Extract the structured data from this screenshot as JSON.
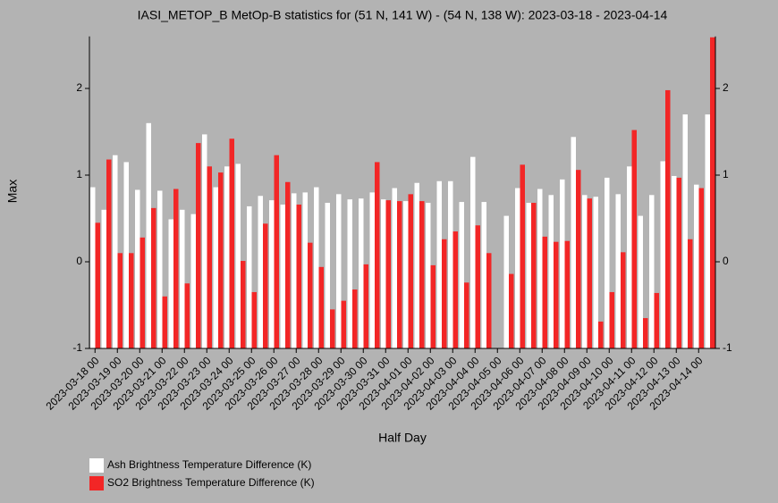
{
  "chart_data": {
    "type": "bar",
    "title": "IASI_METOP_B MetOp-B statistics for (51 N, 141 W) - (54 N, 138 W): 2023-03-18 - 2023-04-14",
    "xlabel": "Half Day",
    "ylabel": "Max",
    "categories": [
      "2023-03-18 00",
      null,
      "2023-03-19 00",
      null,
      "2023-03-20 00",
      null,
      "2023-03-21 00",
      null,
      "2023-03-22 00",
      null,
      "2023-03-23 00",
      null,
      "2023-03-24 00",
      null,
      "2023-03-25 00",
      null,
      "2023-03-26 00",
      null,
      "2023-03-27 00",
      null,
      "2023-03-28 00",
      null,
      "2023-03-29 00",
      null,
      "2023-03-30 00",
      null,
      "2023-03-31 00",
      null,
      "2023-04-01 00",
      null,
      "2023-04-02 00",
      null,
      "2023-04-03 00",
      null,
      "2023-04-04 00",
      null,
      "2023-04-05 00",
      null,
      "2023-04-06 00",
      null,
      "2023-04-07 00",
      null,
      "2023-04-08 00",
      null,
      "2023-04-09 00",
      null,
      "2023-04-10 00",
      null,
      "2023-04-11 00",
      null,
      "2023-04-12 00",
      null,
      "2023-04-13 00",
      null,
      "2023-04-14 00",
      null
    ],
    "series": [
      {
        "name": "Ash Brightness Temperature Difference (K)",
        "color": "#ffffff",
        "values": [
          0.86,
          0.6,
          1.23,
          1.15,
          0.83,
          1.6,
          0.82,
          0.49,
          0.6,
          0.55,
          1.47,
          0.86,
          1.1,
          1.13,
          0.64,
          0.76,
          0.71,
          0.66,
          0.79,
          0.8,
          0.86,
          0.68,
          0.78,
          0.72,
          0.73,
          0.8,
          0.72,
          0.85,
          0.7,
          0.91,
          0.68,
          0.93,
          0.93,
          0.69,
          1.21,
          0.69,
          null,
          0.53,
          0.85,
          0.68,
          0.84,
          0.77,
          0.95,
          1.44,
          0.77,
          0.75,
          0.97,
          0.78,
          1.1,
          0.53,
          0.77,
          1.16,
          0.99,
          1.7,
          0.89,
          1.7
        ]
      },
      {
        "name": "SO2 Brightness Temperature Difference (K)",
        "color": "#f22626",
        "values": [
          0.45,
          1.18,
          0.1,
          0.1,
          0.28,
          0.62,
          -0.4,
          0.84,
          -0.25,
          1.37,
          1.1,
          1.03,
          1.42,
          0.01,
          -0.35,
          0.44,
          1.23,
          0.92,
          0.66,
          0.22,
          -0.06,
          -0.55,
          -0.45,
          -0.32,
          -0.03,
          1.15,
          0.71,
          0.7,
          0.78,
          0.7,
          -0.04,
          0.26,
          0.35,
          -0.24,
          0.42,
          0.1,
          null,
          -0.14,
          1.12,
          0.68,
          0.29,
          0.23,
          0.24,
          1.06,
          0.73,
          -0.69,
          -0.35,
          0.11,
          1.52,
          -0.65,
          -0.36,
          1.98,
          0.97,
          0.26,
          0.85,
          2.59
        ]
      }
    ],
    "ylim": [
      -1,
      2.6
    ],
    "yticks": [
      -1,
      0,
      1,
      2
    ]
  }
}
